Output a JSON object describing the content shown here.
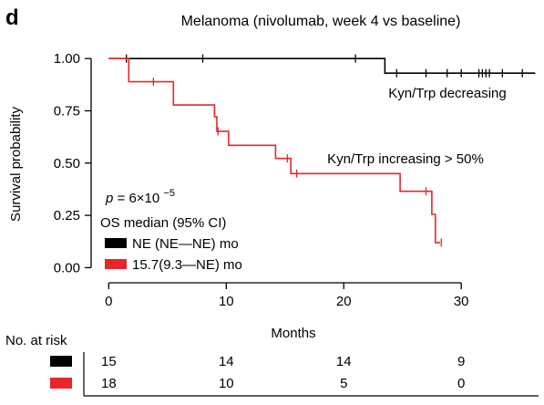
{
  "panel_label": "d",
  "chart_data": {
    "type": "line",
    "title": "Melanoma (nivolumab, week 4 vs baseline)",
    "xlabel": "Months",
    "ylabel": "Survival probability",
    "xlim": [
      -1.5,
      36.5
    ],
    "ylim": [
      -0.02,
      1.04
    ],
    "x_ticks": [
      0,
      10,
      20,
      30
    ],
    "x_tick_labels": [
      "0",
      "10",
      "20",
      "30"
    ],
    "y_ticks": [
      0,
      0.25,
      0.5,
      0.75,
      1.0
    ],
    "y_tick_labels": [
      "0.00",
      "0.25",
      "0.50",
      "0.75",
      "1.00"
    ],
    "grid": false,
    "series": [
      {
        "name": "Kyn/Trp decreasing",
        "color": "#000000",
        "steps": [
          [
            0,
            1.0
          ],
          [
            23.5,
            1.0
          ],
          [
            23.5,
            0.93
          ],
          [
            36.3,
            0.93
          ]
        ],
        "censor": [
          [
            1.5,
            1.0
          ],
          [
            8,
            1.0
          ],
          [
            21,
            1.0
          ],
          [
            24.5,
            0.93
          ],
          [
            27,
            0.93
          ],
          [
            28.8,
            0.93
          ],
          [
            30,
            0.93
          ],
          [
            31.5,
            0.93
          ],
          [
            31.8,
            0.93
          ],
          [
            32.1,
            0.93
          ],
          [
            32.4,
            0.93
          ],
          [
            33.5,
            0.93
          ],
          [
            35.2,
            0.93
          ]
        ]
      },
      {
        "name": "Kyn/Trp increasing > 50%",
        "color": "#e8262a",
        "steps": [
          [
            0,
            1.0
          ],
          [
            1.7,
            1.0
          ],
          [
            1.7,
            0.889
          ],
          [
            5.5,
            0.889
          ],
          [
            5.5,
            0.778
          ],
          [
            9.0,
            0.778
          ],
          [
            9.0,
            0.722
          ],
          [
            9.2,
            0.722
          ],
          [
            9.2,
            0.652
          ],
          [
            10.2,
            0.652
          ],
          [
            10.2,
            0.585
          ],
          [
            14.2,
            0.585
          ],
          [
            14.2,
            0.522
          ],
          [
            15.5,
            0.522
          ],
          [
            15.5,
            0.45
          ],
          [
            24.8,
            0.45
          ],
          [
            24.8,
            0.365
          ],
          [
            27.5,
            0.365
          ],
          [
            27.5,
            0.255
          ],
          [
            27.8,
            0.255
          ],
          [
            27.8,
            0.12
          ],
          [
            28.2,
            0.12
          ]
        ],
        "censor": [
          [
            3.8,
            0.889
          ],
          [
            9.3,
            0.652
          ],
          [
            15.2,
            0.522
          ],
          [
            16.0,
            0.45
          ],
          [
            27.0,
            0.365
          ],
          [
            28.3,
            0.12
          ]
        ]
      }
    ],
    "annotations": [
      {
        "text": "Kyn/Trp decreasing",
        "x": 23.8,
        "y": 0.835
      },
      {
        "text": "Kyn/Trp increasing > 50%",
        "x": 18.6,
        "y": 0.52
      }
    ],
    "stats": {
      "p_prefix": "p",
      "p_value_text": "= 6×10",
      "p_exponent": "−5",
      "median_header": "OS median (95% CI)",
      "legend": [
        {
          "label": "NE (NE—NE) mo",
          "color": "#000000"
        },
        {
          "label": "15.7(9.3—NE) mo",
          "color": "#e8262a"
        }
      ]
    },
    "risk_table": {
      "title": "No. at risk",
      "times": [
        0,
        10,
        20,
        30
      ],
      "rows": [
        {
          "color": "#000000",
          "values": [
            "15",
            "14",
            "14",
            "9"
          ]
        },
        {
          "color": "#e8262a",
          "values": [
            "18",
            "10",
            "5",
            "0"
          ]
        }
      ]
    }
  }
}
